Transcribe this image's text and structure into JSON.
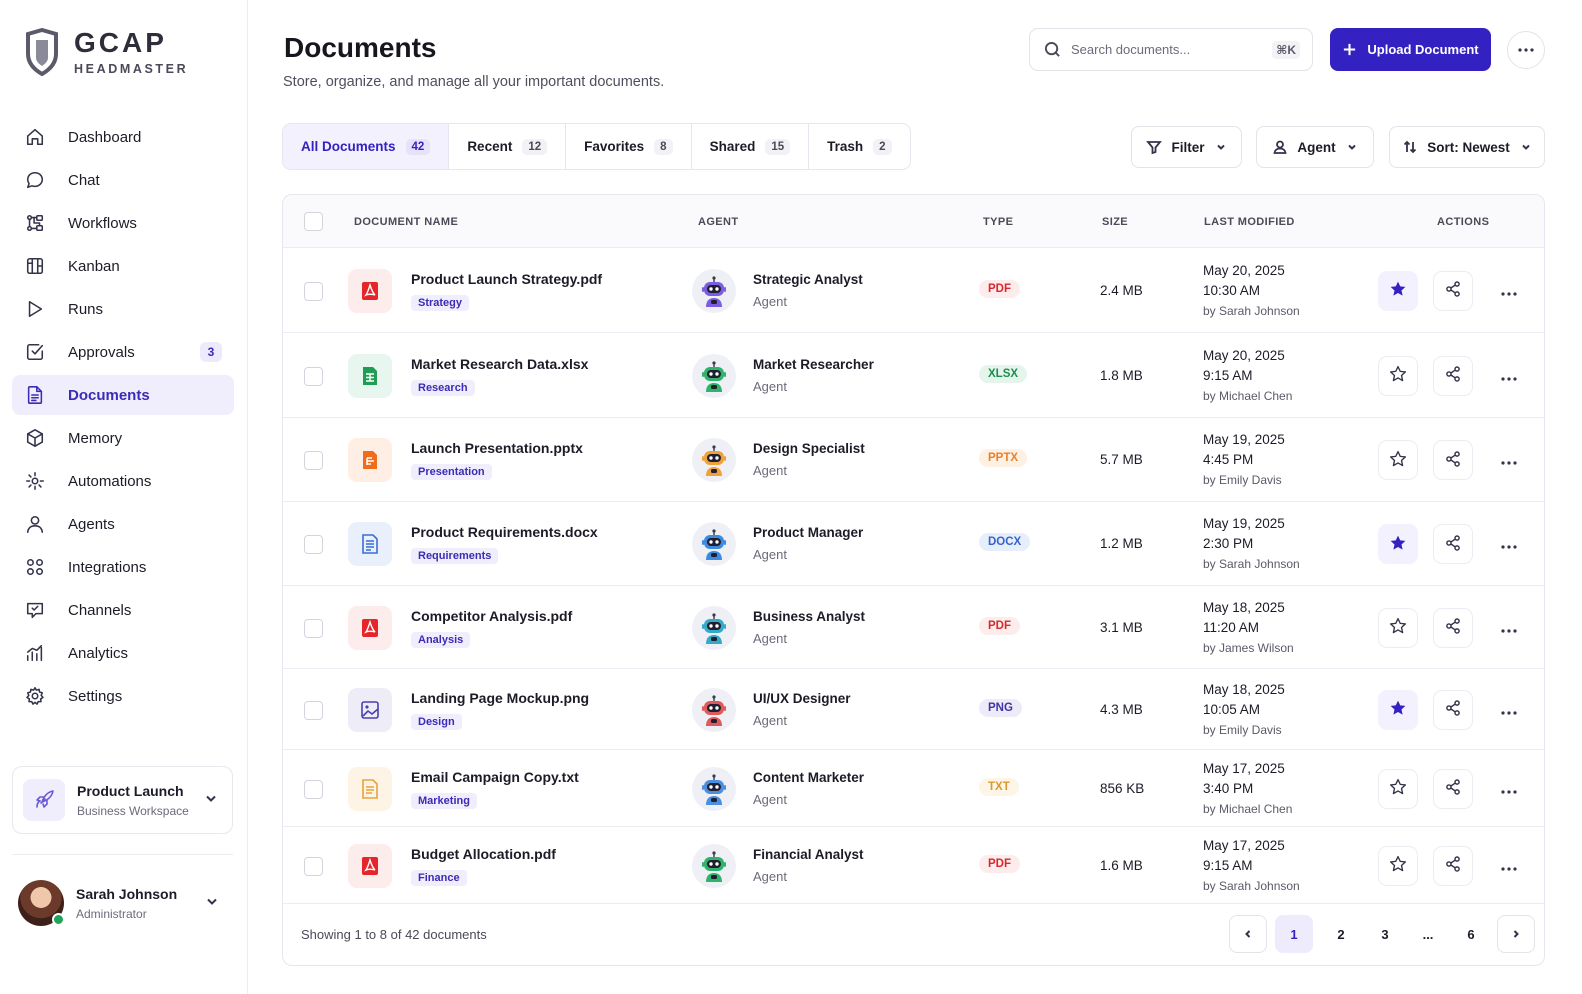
{
  "brand": {
    "name": "GCAP",
    "subtitle": "HEADMASTER"
  },
  "nav": [
    {
      "label": "Dashboard",
      "icon": "home-icon"
    },
    {
      "label": "Chat",
      "icon": "chat-icon"
    },
    {
      "label": "Workflows",
      "icon": "workflow-icon"
    },
    {
      "label": "Kanban",
      "icon": "kanban-icon"
    },
    {
      "label": "Runs",
      "icon": "play-icon"
    },
    {
      "label": "Approvals",
      "icon": "checkbox-icon",
      "badge": "3"
    },
    {
      "label": "Documents",
      "icon": "document-icon",
      "active": true
    },
    {
      "label": "Memory",
      "icon": "cube-icon"
    },
    {
      "label": "Automations",
      "icon": "automation-icon"
    },
    {
      "label": "Agents",
      "icon": "user-icon"
    },
    {
      "label": "Integrations",
      "icon": "integrations-icon"
    },
    {
      "label": "Channels",
      "icon": "channels-icon"
    },
    {
      "label": "Analytics",
      "icon": "analytics-icon"
    },
    {
      "label": "Settings",
      "icon": "gear-icon"
    }
  ],
  "workspace": {
    "name": "Product Launch",
    "sub": "Business Workspace"
  },
  "user": {
    "name": "Sarah Johnson",
    "role": "Administrator"
  },
  "header": {
    "title": "Documents",
    "subtitle": "Store, organize, and manage all your important documents.",
    "search_placeholder": "Search documents...",
    "search_shortcut": "⌘K",
    "upload_label": "Upload Document"
  },
  "tabs": [
    {
      "label": "All Documents",
      "count": "42",
      "active": true
    },
    {
      "label": "Recent",
      "count": "12"
    },
    {
      "label": "Favorites",
      "count": "8"
    },
    {
      "label": "Shared",
      "count": "15"
    },
    {
      "label": "Trash",
      "count": "2"
    }
  ],
  "filters": {
    "filter_label": "Filter",
    "agent_label": "Agent",
    "sort_label": "Sort: Newest"
  },
  "table": {
    "columns": {
      "name": "DOCUMENT NAME",
      "agent": "AGENT",
      "type": "TYPE",
      "size": "SIZE",
      "modified": "LAST MODIFIED",
      "actions": "ACTIONS"
    },
    "rows": [
      {
        "name": "Product Launch Strategy.pdf",
        "tag": "Strategy",
        "agent": "Strategic Analyst",
        "agent_role": "Agent",
        "type": "PDF",
        "size": "2.4 MB",
        "date": "May 20, 2025",
        "time": "10:30 AM",
        "by": "by Sarah Johnson",
        "starred": true,
        "file_kind": "pdf",
        "robot_color": "#7c5ce0"
      },
      {
        "name": "Market Research Data.xlsx",
        "tag": "Research",
        "agent": "Market Researcher",
        "agent_role": "Agent",
        "type": "XLSX",
        "size": "1.8 MB",
        "date": "May 20, 2025",
        "time": "9:15 AM",
        "by": "by Michael Chen",
        "starred": false,
        "file_kind": "xlsx",
        "robot_color": "#2fb36b"
      },
      {
        "name": "Launch Presentation.pptx",
        "tag": "Presentation",
        "agent": "Design Specialist",
        "agent_role": "Agent",
        "type": "PPTX",
        "size": "5.7 MB",
        "date": "May 19, 2025",
        "time": "4:45 PM",
        "by": "by Emily Davis",
        "starred": false,
        "file_kind": "pptx",
        "robot_color": "#f0a23a"
      },
      {
        "name": "Product Requirements.docx",
        "tag": "Requirements",
        "agent": "Product Manager",
        "agent_role": "Agent",
        "type": "DOCX",
        "size": "1.2 MB",
        "date": "May 19, 2025",
        "time": "2:30 PM",
        "by": "by Sarah Johnson",
        "starred": true,
        "file_kind": "docx",
        "robot_color": "#3d8be0"
      },
      {
        "name": "Competitor Analysis.pdf",
        "tag": "Analysis",
        "agent": "Business Analyst",
        "agent_role": "Agent",
        "type": "PDF",
        "size": "3.1 MB",
        "date": "May 18, 2025",
        "time": "11:20 AM",
        "by": "by James Wilson",
        "starred": false,
        "file_kind": "pdf",
        "robot_color": "#35a9c8"
      },
      {
        "name": "Landing Page Mockup.png",
        "tag": "Design",
        "agent": "UI/UX Designer",
        "agent_role": "Agent",
        "type": "PNG",
        "size": "4.3 MB",
        "date": "May 18, 2025",
        "time": "10:05 AM",
        "by": "by Emily Davis",
        "starred": true,
        "file_kind": "png",
        "robot_color": "#e05a5a"
      },
      {
        "name": "Email Campaign Copy.txt",
        "tag": "Marketing",
        "agent": "Content Marketer",
        "agent_role": "Agent",
        "type": "TXT",
        "size": "856 KB",
        "date": "May 17, 2025",
        "time": "3:40 PM",
        "by": "by Michael Chen",
        "starred": false,
        "file_kind": "txt",
        "robot_color": "#4a8fe0"
      },
      {
        "name": "Budget Allocation.pdf",
        "tag": "Finance",
        "agent": "Financial Analyst",
        "agent_role": "Agent",
        "type": "PDF",
        "size": "1.6 MB",
        "date": "May 17, 2025",
        "time": "9:15 AM",
        "by": "by Sarah Johnson",
        "starred": false,
        "file_kind": "pdf",
        "robot_color": "#2fb36b"
      }
    ]
  },
  "pagination": {
    "summary": "Showing 1 to 8 of 42 documents",
    "pages": [
      "1",
      "2",
      "3",
      "...",
      "6"
    ],
    "current": "1"
  },
  "colors": {
    "accent": "#3421c2",
    "accent_light": "#f0eefc",
    "pdf": "#e5252a",
    "xlsx": "#1f9d55",
    "pptx": "#f06c1b",
    "docx": "#3a6fd8",
    "png": "#4a3fb0",
    "txt": "#e9a23b"
  }
}
